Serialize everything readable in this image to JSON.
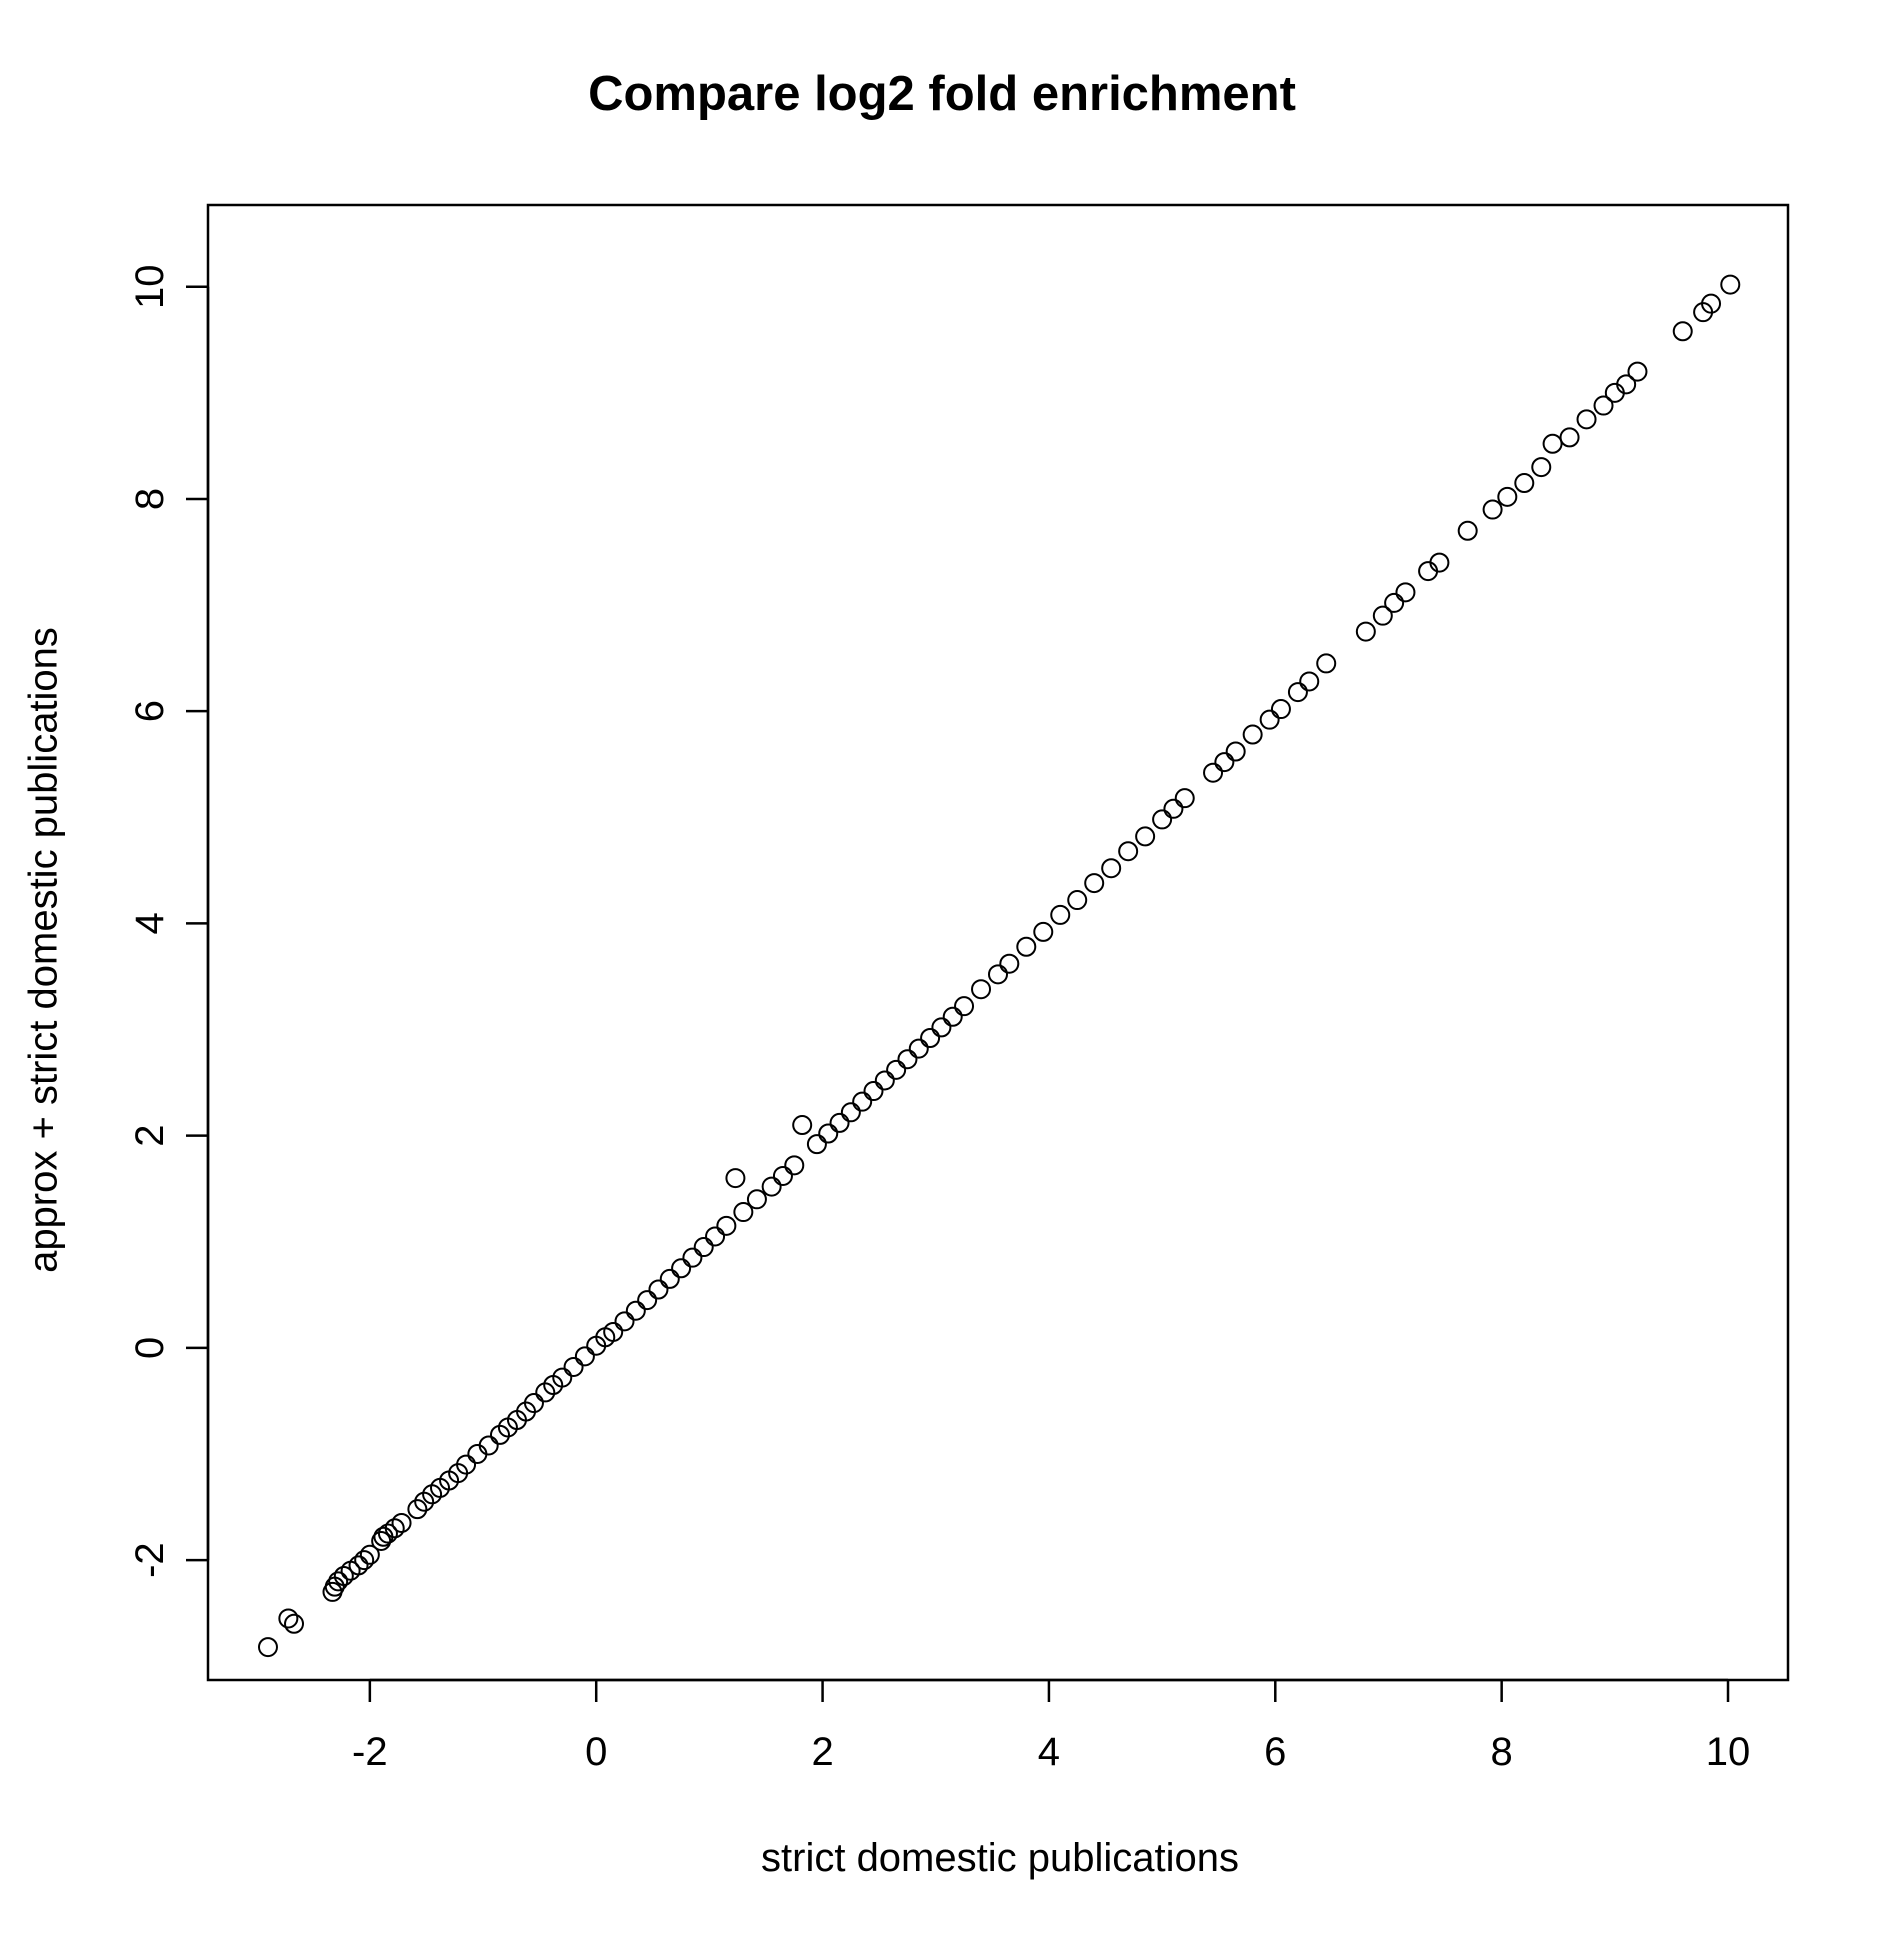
{
  "chart_data": {
    "type": "scatter",
    "title": "Compare log2 fold enrichment",
    "xlabel": "strict domestic publications",
    "ylabel": "approx + strict domestic publications",
    "xlim": [
      -3.43,
      10.53
    ],
    "ylim": [
      -3.13,
      10.77
    ],
    "xticks": [
      -2,
      0,
      2,
      4,
      6,
      8,
      10
    ],
    "xtick_labels": [
      "-2",
      "0",
      "2",
      "4",
      "6",
      "8",
      "10"
    ],
    "yticks": [
      -2,
      0,
      2,
      4,
      6,
      8,
      10
    ],
    "ytick_labels": [
      "-2",
      "0",
      "2",
      "4",
      "6",
      "8",
      "10"
    ],
    "grid": false,
    "legend": "none",
    "marker": "open circle",
    "color": "#000000",
    "series": [
      {
        "x": [
          -2.9,
          -2.72,
          -2.67,
          -2.33,
          -2.31,
          -2.28,
          -2.23,
          -2.17,
          -2.1,
          -2.05,
          -2.0,
          -1.9,
          -1.88,
          -1.84,
          -1.78,
          -1.72,
          -1.58,
          -1.52,
          -1.45,
          -1.38,
          -1.3,
          -1.22,
          -1.15,
          -1.05,
          -0.95,
          -0.85,
          -0.78,
          -0.7,
          -0.62,
          -0.55,
          -0.45,
          -0.38,
          -0.3,
          -0.2,
          -0.1,
          0.0,
          0.08,
          0.15,
          0.25,
          0.35,
          0.45,
          0.55,
          0.65,
          0.75,
          0.85,
          0.95,
          1.05,
          1.15,
          1.23,
          1.3,
          1.42,
          1.55,
          1.65,
          1.75,
          1.82,
          1.95,
          2.05,
          2.15,
          2.25,
          2.35,
          2.45,
          2.55,
          2.65,
          2.75,
          2.85,
          2.95,
          3.05,
          3.15,
          3.25,
          3.4,
          3.55,
          3.65,
          3.8,
          3.95,
          4.1,
          4.25,
          4.4,
          4.55,
          4.7,
          4.85,
          5.0,
          5.1,
          5.2,
          5.45,
          5.55,
          5.65,
          5.8,
          5.95,
          6.05,
          6.2,
          6.3,
          6.45,
          6.8,
          6.95,
          7.05,
          7.15,
          7.35,
          7.45,
          7.7,
          7.92,
          8.05,
          8.2,
          8.35,
          8.45,
          8.6,
          8.75,
          8.9,
          9.0,
          9.1,
          9.2,
          9.6,
          9.78,
          9.85,
          10.02
        ],
        "y": [
          -2.82,
          -2.55,
          -2.6,
          -2.3,
          -2.25,
          -2.2,
          -2.15,
          -2.1,
          -2.05,
          -2.0,
          -1.95,
          -1.82,
          -1.78,
          -1.75,
          -1.7,
          -1.65,
          -1.52,
          -1.45,
          -1.38,
          -1.32,
          -1.25,
          -1.18,
          -1.1,
          -1.0,
          -0.92,
          -0.82,
          -0.75,
          -0.68,
          -0.6,
          -0.52,
          -0.42,
          -0.35,
          -0.28,
          -0.18,
          -0.08,
          0.02,
          0.1,
          0.15,
          0.25,
          0.35,
          0.45,
          0.55,
          0.65,
          0.75,
          0.85,
          0.95,
          1.05,
          1.15,
          1.6,
          1.28,
          1.4,
          1.52,
          1.62,
          1.72,
          2.1,
          1.92,
          2.02,
          2.12,
          2.22,
          2.32,
          2.42,
          2.52,
          2.62,
          2.72,
          2.82,
          2.92,
          3.02,
          3.12,
          3.22,
          3.38,
          3.52,
          3.62,
          3.78,
          3.92,
          4.08,
          4.22,
          4.38,
          4.52,
          4.68,
          4.82,
          4.98,
          5.08,
          5.18,
          5.42,
          5.52,
          5.62,
          5.78,
          5.92,
          6.02,
          6.18,
          6.28,
          6.45,
          6.75,
          6.9,
          7.02,
          7.12,
          7.32,
          7.4,
          7.7,
          7.9,
          8.02,
          8.15,
          8.3,
          8.52,
          8.58,
          8.75,
          8.88,
          9.0,
          9.08,
          9.2,
          9.58,
          9.76,
          9.84,
          10.02
        ]
      }
    ]
  }
}
